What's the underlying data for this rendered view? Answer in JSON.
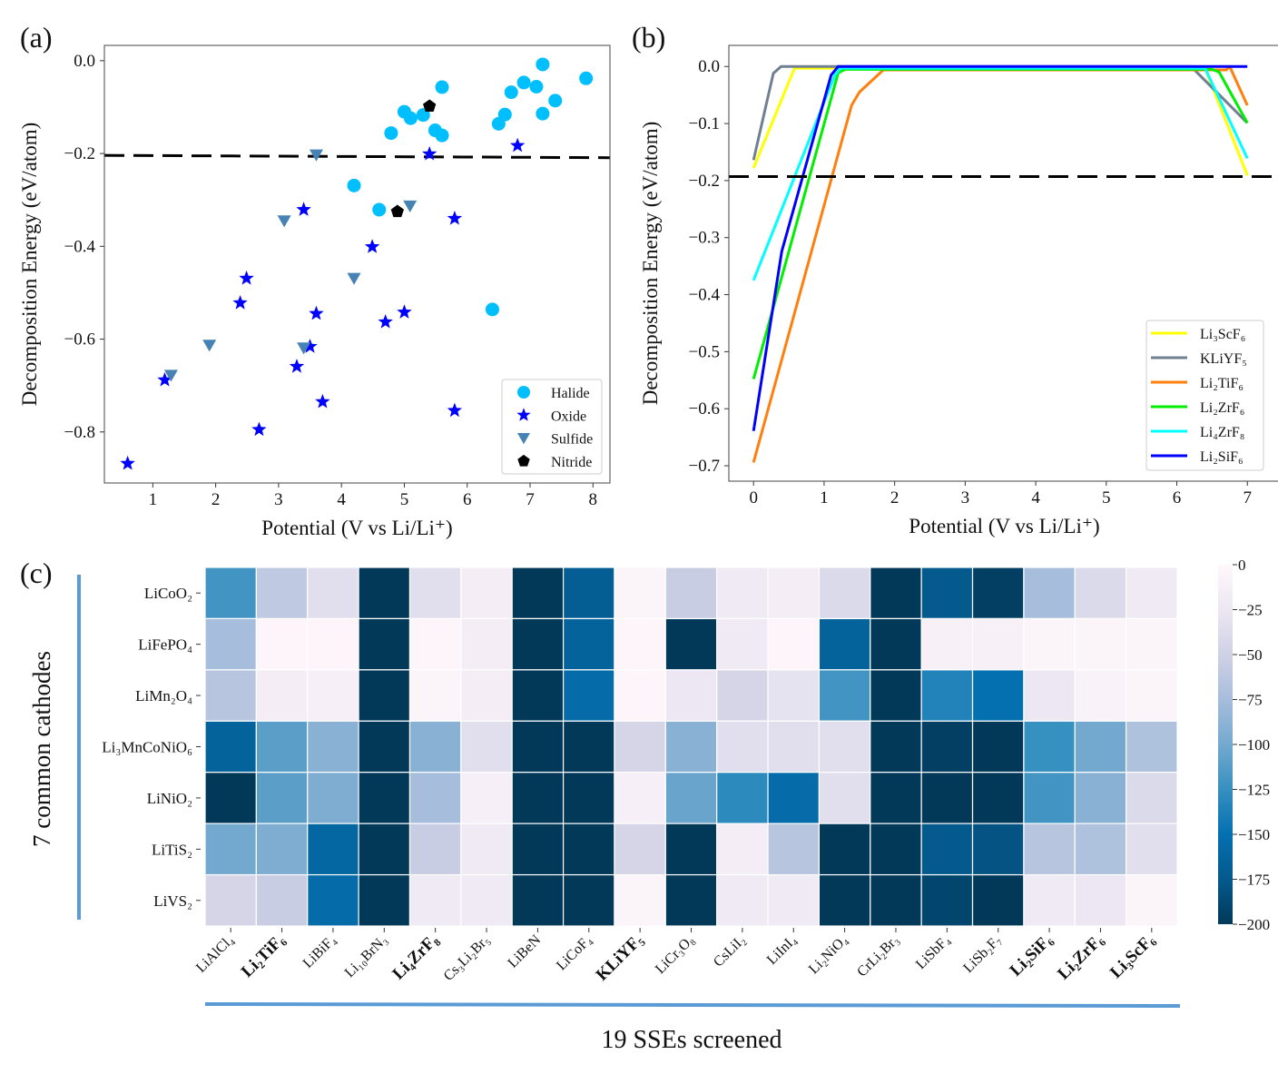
{
  "chart_data": [
    {
      "panel": "(a)",
      "type": "scatter",
      "xlabel": "Potential (V vs Li/Li⁺)",
      "ylabel": "Decomposition Energy (eV/atom)",
      "xlim": [
        0.23,
        8.27
      ],
      "ylim": [
        -0.91,
        0.033
      ],
      "xticks": [
        1,
        2,
        3,
        4,
        5,
        6,
        7,
        8
      ],
      "yticks": [
        0.0,
        -0.2,
        -0.4,
        -0.6,
        -0.8
      ],
      "ytick_labels": [
        "0.0",
        "−0.2",
        "−0.4",
        "−0.6",
        "−0.8"
      ],
      "grid": false,
      "legend": "bottom-right",
      "threshold_line": {
        "style": "dashed",
        "color": "#000000",
        "x": [
          0.23,
          8.27
        ],
        "y": [
          -0.204,
          -0.209
        ]
      },
      "series": [
        {
          "name": "Halide",
          "marker": "circle",
          "color": "#00bfff",
          "points": [
            [
              4.79,
              -0.156
            ],
            [
              5.0,
              -0.11
            ],
            [
              5.1,
              -0.124
            ],
            [
              5.3,
              -0.117
            ],
            [
              5.49,
              -0.15
            ],
            [
              5.6,
              -0.161
            ],
            [
              5.6,
              -0.057
            ],
            [
              6.5,
              -0.136
            ],
            [
              6.6,
              -0.116
            ],
            [
              6.7,
              -0.068
            ],
            [
              6.9,
              -0.047
            ],
            [
              7.1,
              -0.056
            ],
            [
              7.2,
              -0.008
            ],
            [
              7.2,
              -0.114
            ],
            [
              7.4,
              -0.086
            ],
            [
              7.89,
              -0.038
            ],
            [
              4.2,
              -0.269
            ],
            [
              4.6,
              -0.321
            ],
            [
              6.4,
              -0.536
            ]
          ]
        },
        {
          "name": "Oxide",
          "marker": "star",
          "color": "#0000ff",
          "points": [
            [
              5.4,
              -0.201
            ],
            [
              6.8,
              -0.183
            ],
            [
              3.4,
              -0.321
            ],
            [
              5.8,
              -0.34
            ],
            [
              4.49,
              -0.401
            ],
            [
              2.49,
              -0.469
            ],
            [
              2.39,
              -0.522
            ],
            [
              3.6,
              -0.545
            ],
            [
              5.0,
              -0.542
            ],
            [
              4.7,
              -0.563
            ],
            [
              3.5,
              -0.616
            ],
            [
              3.29,
              -0.659
            ],
            [
              1.19,
              -0.688
            ],
            [
              3.7,
              -0.735
            ],
            [
              2.69,
              -0.795
            ],
            [
              5.8,
              -0.754
            ],
            [
              0.6,
              -0.868
            ]
          ]
        },
        {
          "name": "Sulfide",
          "marker": "triangle-down",
          "color": "#4682b4",
          "points": [
            [
              3.6,
              -0.203
            ],
            [
              3.09,
              -0.345
            ],
            [
              5.09,
              -0.313
            ],
            [
              4.2,
              -0.469
            ],
            [
              1.9,
              -0.613
            ],
            [
              3.4,
              -0.619
            ],
            [
              1.29,
              -0.678
            ]
          ]
        },
        {
          "name": "Nitride",
          "marker": "pentagon",
          "color": "#000000",
          "points": [
            [
              5.4,
              -0.098
            ],
            [
              4.89,
              -0.325
            ]
          ]
        }
      ]
    },
    {
      "panel": "(b)",
      "type": "line",
      "xlabel": "Potential (V vs Li/Li⁺)",
      "ylabel": "Decomposition Energy (eV/atom)",
      "xlim": [
        -0.35,
        7.46
      ],
      "ylim": [
        -0.727,
        0.037
      ],
      "xticks": [
        0,
        1,
        2,
        3,
        4,
        5,
        6,
        7
      ],
      "yticks": [
        0.0,
        -0.1,
        -0.2,
        -0.3,
        -0.4,
        -0.5,
        -0.6,
        -0.7
      ],
      "ytick_labels": [
        "0.0",
        "−0.1",
        "−0.2",
        "−0.3",
        "−0.4",
        "−0.5",
        "−0.6",
        "−0.7"
      ],
      "grid": false,
      "legend": "bottom-right",
      "threshold_line": {
        "style": "dashed",
        "color": "#000000",
        "y": -0.193
      },
      "series": [
        {
          "name": "Li₃ScF₆",
          "color": "#ffff00",
          "points": [
            [
              0,
              -0.178
            ],
            [
              0.58,
              -0.003
            ],
            [
              6.4,
              -0.003
            ],
            [
              7,
              -0.191
            ]
          ]
        },
        {
          "name": "KLiYF₅",
          "color": "#708090",
          "points": [
            [
              0,
              -0.164
            ],
            [
              0.28,
              -0.012
            ],
            [
              0.39,
              0
            ],
            [
              6.2,
              0
            ],
            [
              6.25,
              -0.006
            ],
            [
              7,
              -0.099
            ]
          ]
        },
        {
          "name": "Li₂TiF₆",
          "color": "#ff7f0e",
          "points": [
            [
              0,
              -0.694
            ],
            [
              1.39,
              -0.068
            ],
            [
              1.5,
              -0.045
            ],
            [
              1.84,
              -0.006
            ],
            [
              6.7,
              -0.006
            ],
            [
              6.75,
              0
            ],
            [
              7,
              -0.068
            ]
          ]
        },
        {
          "name": "Li₂ZrF₆",
          "color": "#00ee00",
          "points": [
            [
              0,
              -0.548
            ],
            [
              1.2,
              -0.011
            ],
            [
              1.3,
              -0.005
            ],
            [
              6.5,
              -0.005
            ],
            [
              6.6,
              -0.01
            ],
            [
              7,
              -0.099
            ]
          ]
        },
        {
          "name": "Li₄ZrF₈",
          "color": "#00ffff",
          "points": [
            [
              0,
              -0.375
            ],
            [
              1.15,
              -0.016
            ],
            [
              1.23,
              -0.003
            ],
            [
              6.4,
              -0.003
            ],
            [
              7,
              -0.161
            ]
          ]
        },
        {
          "name": "Li₂SiF₆",
          "color": "#0000ff",
          "points": [
            [
              0,
              -0.639
            ],
            [
              0.4,
              -0.324
            ],
            [
              1.1,
              -0.015
            ],
            [
              1.2,
              0
            ],
            [
              7,
              0
            ]
          ]
        }
      ]
    },
    {
      "panel": "(c)",
      "type": "heatmap",
      "colormap": "PuBu_r",
      "vmin": -200,
      "vmax": 0,
      "colorbar_ticks": [
        0,
        -25,
        -50,
        -75,
        -100,
        -125,
        -150,
        -175,
        -200
      ],
      "colorbar_labels": [
        "0",
        "−25",
        "−50",
        "−75",
        "−100",
        "−125",
        "−150",
        "−175",
        "−200"
      ],
      "ylabel": "7 common cathodes",
      "xlabel": "19 SSEs screened",
      "rows": [
        "LiCoO₂",
        "LiFePO₄",
        "LiMn₂O₄",
        "Li₃MnCoNiO₆",
        "LiNiO₂",
        "LiTiS₂",
        "LiVS₂"
      ],
      "columns": [
        "LiAlCl₄",
        "Li₂TiF₆",
        "LiBiF₄",
        "Li₁₀BrN₃",
        "Li₄ZrF₈",
        "Cs₃Li₂Br₅",
        "LiBeN",
        "LiCoF₄",
        "KLiYF₅",
        "LiCr₃O₈",
        "CsLiI₂",
        "LiInI₄",
        "Li₂NiO₄",
        "CrLi₂Br₃",
        "LiSbF₄",
        "LiSb₂F₇",
        "Li₂SiF₆",
        "Li₂ZrF₆",
        "Li₃ScF₆"
      ],
      "bold_columns": [
        "Li₂TiF₆",
        "Li₄ZrF₈",
        "KLiYF₅",
        "Li₂SiF₆",
        "Li₂ZrF₆",
        "Li₃ScF₆"
      ],
      "values": [
        [
          -120,
          -60,
          -35,
          -200,
          -35,
          -15,
          -200,
          -170,
          -5,
          -55,
          -20,
          -15,
          -40,
          -200,
          -175,
          -195,
          -75,
          -40,
          -20
        ],
        [
          -75,
          -3,
          -3,
          -200,
          -3,
          -15,
          -200,
          -165,
          -3,
          -200,
          -20,
          -3,
          -165,
          -200,
          -10,
          -10,
          -5,
          -5,
          -5
        ],
        [
          -65,
          -15,
          -12,
          -200,
          -5,
          -15,
          -200,
          -155,
          -3,
          -25,
          -45,
          -30,
          -120,
          -200,
          -135,
          -150,
          -25,
          -8,
          -5
        ],
        [
          -165,
          -110,
          -90,
          -200,
          -90,
          -35,
          -200,
          -200,
          -45,
          -90,
          -35,
          -35,
          -35,
          -200,
          -195,
          -200,
          -125,
          -100,
          -70
        ],
        [
          -200,
          -110,
          -95,
          -200,
          -75,
          -12,
          -200,
          -200,
          -12,
          -105,
          -130,
          -155,
          -35,
          -200,
          -200,
          -200,
          -120,
          -90,
          -40
        ],
        [
          -100,
          -95,
          -160,
          -200,
          -55,
          -20,
          -200,
          -200,
          -45,
          -200,
          -15,
          -65,
          -200,
          -200,
          -175,
          -180,
          -65,
          -70,
          -35
        ],
        [
          -45,
          -55,
          -155,
          -200,
          -20,
          -20,
          -200,
          -200,
          -5,
          -200,
          -20,
          -20,
          -200,
          -200,
          -190,
          -200,
          -20,
          -25,
          -5
        ]
      ],
      "accent_line_color": "#5b9bd5"
    }
  ]
}
